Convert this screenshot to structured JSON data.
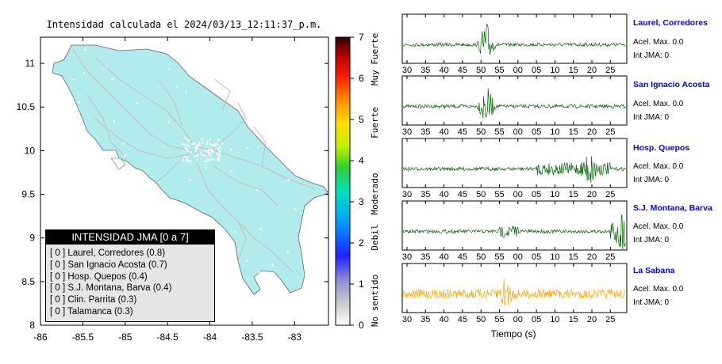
{
  "map": {
    "title": "Intensidad calculada el 2024/03/13_12:11:37_p.m.",
    "x_ticks": [
      "-86",
      "-85.5",
      "-85",
      "-84.5",
      "-84",
      "-83.5",
      "-83"
    ],
    "y_ticks": [
      "11",
      "10.5",
      "10",
      "9.5",
      "9",
      "8.5",
      "8"
    ],
    "land_color": "#b1ebec",
    "road_color": "#bdbdbd"
  },
  "colorbar": {
    "ticks": [
      "7",
      "6",
      "5",
      "4",
      "3",
      "2",
      "1",
      "0"
    ],
    "labels": [
      "Muy Fuerte",
      "Fuerte",
      "Moderado",
      "Debil",
      "No sentido"
    ]
  },
  "legend": {
    "title": "INTENSIDAD JMA [0 a 7]",
    "items": [
      "[ 0 ]  Laurel, Corredores (0.8)",
      "[ 0 ]  San Ignacio Acosta (0.7)",
      "[ 0 ]  Hosp. Quepos (0.4)",
      "[ 0 ]  S.J. Montana, Barva (0.4)",
      "[ 0 ]  Clin. Parrita (0.3)",
      "[ 0 ]  Talamanca (0.3)"
    ]
  },
  "stations": [
    {
      "name": "Laurel, Corredores",
      "accel": "Acel. Max. 0.0",
      "jma": "Int JMA: 0",
      "color": "#006400"
    },
    {
      "name": "San Ignacio Acosta",
      "accel": "Acel. Max. 0.0",
      "jma": "Int JMA: 0",
      "color": "#006400"
    },
    {
      "name": "Hosp. Quepos",
      "accel": "Acel. Max. 0.0",
      "jma": "Int JMA: 0",
      "color": "#006400"
    },
    {
      "name": "S.J. Montana, Barva",
      "accel": "Acel. Max. 0.0",
      "jma": "Int JMA: 0",
      "color": "#006400"
    },
    {
      "name": "La Sabana",
      "accel": "Acel. Max. 0.0",
      "jma": "Int JMA: 0",
      "color": "#ffa500"
    }
  ],
  "chart_data": [
    {
      "type": "heatmap",
      "title": "Intensidad calculada el 2024/03/13_12:11:37_p.m.",
      "xlim": [
        -86,
        -82.6
      ],
      "ylim": [
        8,
        11.3
      ],
      "colorbar_range": [
        0,
        7
      ],
      "colorbar_labels": [
        "No sentido",
        "Debil",
        "Moderado",
        "Fuerte",
        "Muy Fuerte"
      ]
    },
    {
      "type": "line",
      "xlabel": "Tiempo (s)",
      "x_tick_labels": [
        "30",
        "35",
        "40",
        "45",
        "50",
        "55",
        "00",
        "05",
        "10",
        "15",
        "20",
        "25"
      ],
      "series": [
        {
          "name": "Laurel, Corredores",
          "burst_at_tick": "50"
        },
        {
          "name": "San Ignacio Acosta",
          "burst_at_tick": "50"
        },
        {
          "name": "Hosp. Quepos",
          "burst_at_tick": "15"
        },
        {
          "name": "S.J. Montana, Barva",
          "burst_at_tick": "25"
        },
        {
          "name": "La Sabana",
          "burst_at_tick": "55"
        }
      ]
    }
  ]
}
